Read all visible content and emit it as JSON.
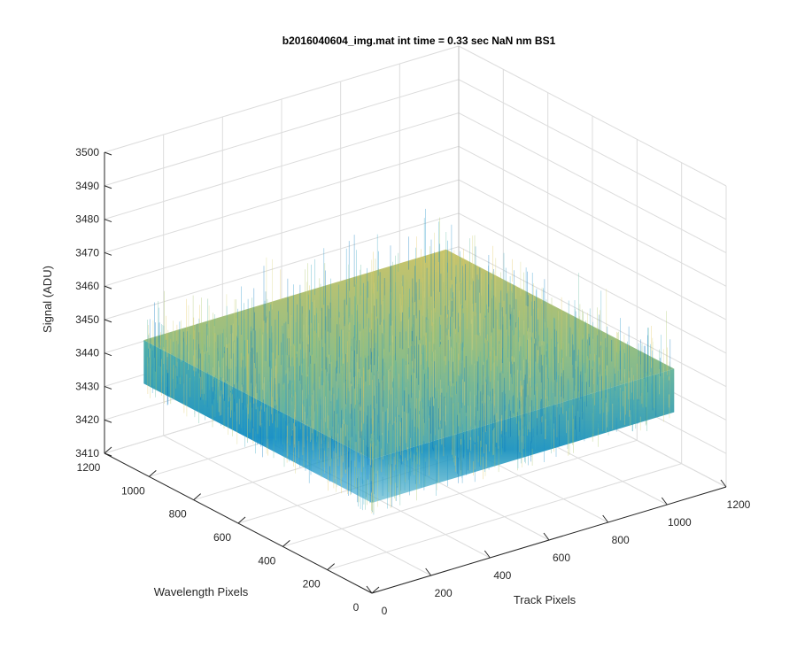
{
  "chart_data": {
    "type": "surface",
    "title": "b2016040604_img.mat int time = 0.33 sec  NaN nm BS1",
    "xlabel": "Track Pixels",
    "ylabel": "Wavelength Pixels",
    "zlabel": "Signal (ADU)",
    "xlim": [
      0,
      1200
    ],
    "ylim": [
      0,
      1200
    ],
    "zlim": [
      3410,
      3500
    ],
    "xticks": [
      "0",
      "200",
      "400",
      "600",
      "800",
      "1000",
      "1200"
    ],
    "yticks": [
      "0",
      "200",
      "400",
      "600",
      "800",
      "1000",
      "1200"
    ],
    "zticks": [
      "3410",
      "3420",
      "3430",
      "3440",
      "3450",
      "3460",
      "3470",
      "3480",
      "3490",
      "3500"
    ],
    "data_extent": {
      "x": [
        0,
        1024
      ],
      "y": [
        0,
        1024
      ]
    },
    "signal_mean": 3445,
    "signal_range": [
      3410,
      3495
    ],
    "grid": true,
    "colormap": "parula",
    "colors": {
      "low": "#0072bd",
      "mid": "#3fb0b8",
      "high": "#e6d27a",
      "axis": "#262626",
      "grid": "#dcdcdc"
    }
  }
}
